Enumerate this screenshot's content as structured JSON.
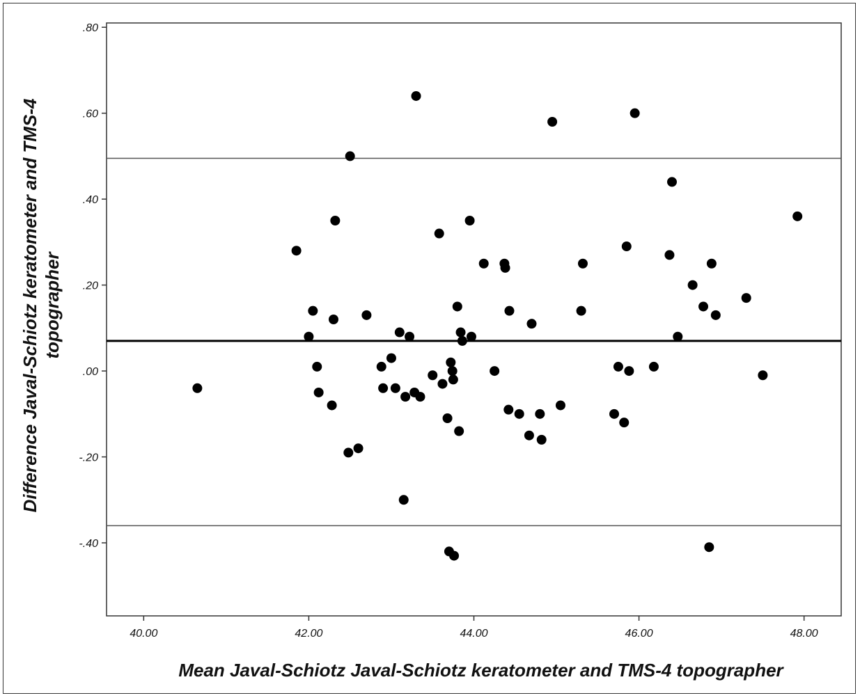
{
  "chart_data": {
    "type": "scatter",
    "xlabel": "Mean Javal-Schiotz Javal-Schiotz keratometer and TMS-4 topographer",
    "ylabel_line1": "Difference Javal-Schiotz keratometer and TMS-4",
    "ylabel_line2": "topographer",
    "xlim": [
      39.55,
      48.45
    ],
    "ylim": [
      -0.57,
      0.81
    ],
    "x_ticks": [
      {
        "value": 40,
        "label": "40.00"
      },
      {
        "value": 42,
        "label": "42.00"
      },
      {
        "value": 44,
        "label": "44.00"
      },
      {
        "value": 46,
        "label": "46.00"
      },
      {
        "value": 48,
        "label": "48.00"
      }
    ],
    "y_ticks": [
      {
        "value": 0.8,
        "label": ".80"
      },
      {
        "value": 0.6,
        "label": ".60"
      },
      {
        "value": 0.4,
        "label": ".40"
      },
      {
        "value": 0.2,
        "label": ".20"
      },
      {
        "value": 0.0,
        "label": ".00"
      },
      {
        "value": -0.2,
        "label": "-.20"
      },
      {
        "value": -0.4,
        "label": "-.40"
      }
    ],
    "reference_lines": [
      {
        "value": 0.495,
        "role": "upper-limit"
      },
      {
        "value": 0.07,
        "role": "mean"
      },
      {
        "value": -0.36,
        "role": "lower-limit"
      }
    ],
    "grid": false,
    "point_color": "#000000",
    "points": [
      [
        40.65,
        -0.04
      ],
      [
        41.85,
        0.28
      ],
      [
        42.0,
        0.08
      ],
      [
        42.05,
        0.14
      ],
      [
        42.1,
        0.01
      ],
      [
        42.12,
        -0.05
      ],
      [
        42.28,
        -0.08
      ],
      [
        42.3,
        0.12
      ],
      [
        42.32,
        0.35
      ],
      [
        42.48,
        -0.19
      ],
      [
        42.5,
        0.5
      ],
      [
        42.6,
        -0.18
      ],
      [
        42.7,
        0.13
      ],
      [
        42.88,
        0.01
      ],
      [
        42.9,
        -0.04
      ],
      [
        43.0,
        0.03
      ],
      [
        43.05,
        -0.04
      ],
      [
        43.1,
        0.09
      ],
      [
        43.15,
        -0.3
      ],
      [
        43.17,
        -0.06
      ],
      [
        43.22,
        0.08
      ],
      [
        43.28,
        -0.05
      ],
      [
        43.3,
        0.64
      ],
      [
        43.35,
        -0.06
      ],
      [
        43.5,
        -0.01
      ],
      [
        43.58,
        0.32
      ],
      [
        43.62,
        -0.03
      ],
      [
        43.68,
        -0.11
      ],
      [
        43.7,
        -0.42
      ],
      [
        43.72,
        0.02
      ],
      [
        43.74,
        0.0
      ],
      [
        43.75,
        -0.02
      ],
      [
        43.76,
        -0.43
      ],
      [
        43.8,
        0.15
      ],
      [
        43.82,
        -0.14
      ],
      [
        43.84,
        0.09
      ],
      [
        43.86,
        0.07
      ],
      [
        43.95,
        0.35
      ],
      [
        43.97,
        0.08
      ],
      [
        44.12,
        0.25
      ],
      [
        44.25,
        0.0
      ],
      [
        44.37,
        0.25
      ],
      [
        44.38,
        0.24
      ],
      [
        44.42,
        -0.09
      ],
      [
        44.43,
        0.14
      ],
      [
        44.55,
        -0.1
      ],
      [
        44.67,
        -0.15
      ],
      [
        44.7,
        0.11
      ],
      [
        44.8,
        -0.1
      ],
      [
        44.82,
        -0.16
      ],
      [
        44.95,
        0.58
      ],
      [
        45.05,
        -0.08
      ],
      [
        45.3,
        0.14
      ],
      [
        45.32,
        0.25
      ],
      [
        45.7,
        -0.1
      ],
      [
        45.75,
        0.01
      ],
      [
        45.82,
        -0.12
      ],
      [
        45.85,
        0.29
      ],
      [
        45.88,
        0.0
      ],
      [
        45.95,
        0.6
      ],
      [
        46.18,
        0.01
      ],
      [
        46.37,
        0.27
      ],
      [
        46.4,
        0.44
      ],
      [
        46.47,
        0.08
      ],
      [
        46.65,
        0.2
      ],
      [
        46.78,
        0.15
      ],
      [
        46.85,
        -0.41
      ],
      [
        46.88,
        0.25
      ],
      [
        46.93,
        0.13
      ],
      [
        47.3,
        0.17
      ],
      [
        47.5,
        -0.01
      ],
      [
        47.92,
        0.36
      ]
    ]
  }
}
